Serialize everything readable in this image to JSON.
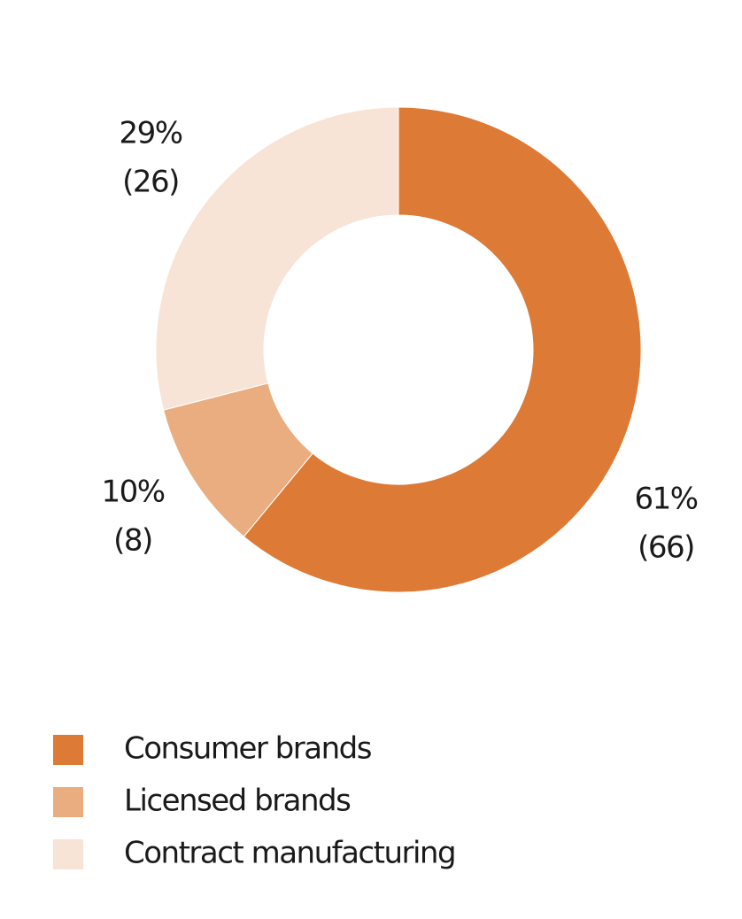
{
  "chart_data": {
    "type": "donut",
    "categories": [
      "Consumer brands",
      "Licensed brands",
      "Contract manufacturing"
    ],
    "values": [
      61,
      10,
      29
    ],
    "value_labels": [
      "61%",
      "10%",
      "29%"
    ],
    "secondary_labels": [
      "(66)",
      "(8)",
      "(26)"
    ],
    "colors": [
      "#dd7a36",
      "#eaad80",
      "#f7e4d6"
    ]
  }
}
